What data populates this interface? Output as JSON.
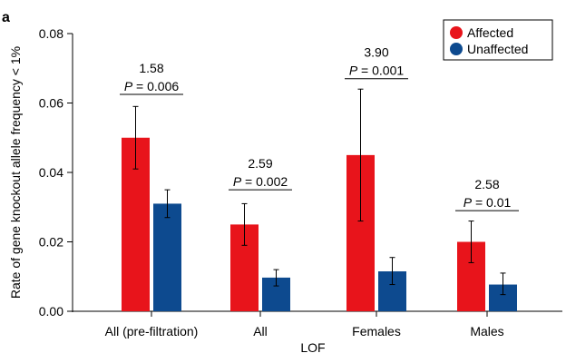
{
  "chart_data": {
    "type": "bar",
    "panel_label": "a",
    "xlabel": "LOF",
    "ylabel": "Rate of gene knockout allele frequency < 1%",
    "ylim": [
      0,
      0.08
    ],
    "yticks": [
      "0.00",
      "0.02",
      "0.04",
      "0.06",
      "0.08"
    ],
    "categories": [
      "All (pre-filtration)",
      "All",
      "Females",
      "Males"
    ],
    "series": [
      {
        "name": "Affected",
        "color": "#e8141b",
        "values": [
          0.05,
          0.025,
          0.045,
          0.02
        ],
        "err_low": [
          0.041,
          0.019,
          0.026,
          0.014
        ],
        "err_high": [
          0.059,
          0.031,
          0.064,
          0.026
        ]
      },
      {
        "name": "Unaffected",
        "color": "#0d4a8f",
        "values": [
          0.031,
          0.0097,
          0.0115,
          0.0077
        ],
        "err_low": [
          0.027,
          0.0073,
          0.0077,
          0.0048
        ],
        "err_high": [
          0.035,
          0.012,
          0.0155,
          0.011
        ]
      }
    ],
    "annotations": [
      {
        "ratio": "1.58",
        "p_prefix": "P",
        "p_value": " = 0.006",
        "y": 0.0625
      },
      {
        "ratio": "2.59",
        "p_prefix": "P",
        "p_value": " = 0.002",
        "y": 0.035
      },
      {
        "ratio": "3.90",
        "p_prefix": "P",
        "p_value": " = 0.001",
        "y": 0.067
      },
      {
        "ratio": "2.58",
        "p_prefix": "P",
        "p_value": " = 0.01",
        "y": 0.029
      }
    ],
    "legend": [
      "Affected",
      "Unaffected"
    ],
    "legend_position": "top-right"
  }
}
